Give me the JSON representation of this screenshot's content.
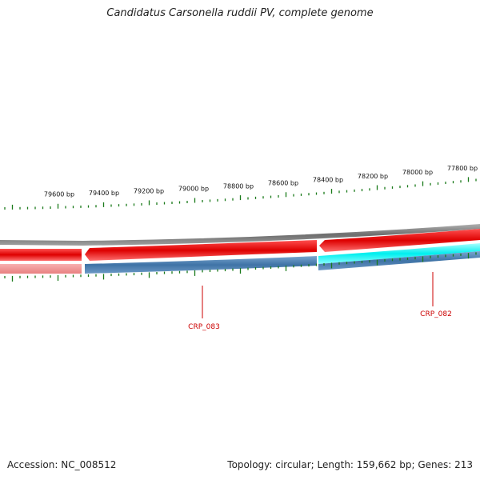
{
  "title": "Candidatus Carsonella ruddii PV, complete genome",
  "footer": {
    "accession": "Accession: NC_008512",
    "summary": "Topology: circular; Length: 159,662 bp; Genes: 213"
  },
  "scale_labels": [
    "79600 bp",
    "79400 bp",
    "79200 bp",
    "79000 bp",
    "78800 bp",
    "78600 bp",
    "78400 bp",
    "78200 bp",
    "78000 bp",
    "77800 bp"
  ],
  "gene_labels": [
    "CRP_083",
    "CRP_082"
  ],
  "colors": {
    "backbone": "#808080",
    "forward_gene": "#ee0000",
    "forward_gene_light": "#f08080",
    "reverse_gene": "#4a7fb0",
    "reverse_gene_highlight": "#00ffff",
    "ticks": "#1a7a1a",
    "gene_label": "#cc0000"
  }
}
